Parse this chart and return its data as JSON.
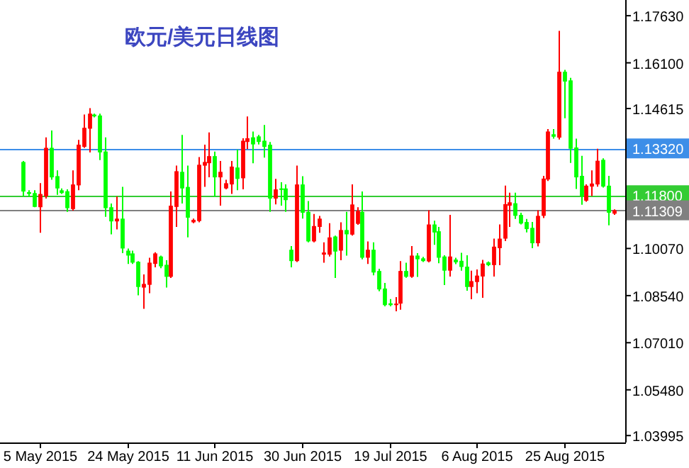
{
  "chart_data": {
    "type": "candlestick",
    "title": "欧元/美元日线图",
    "categories": [
      null,
      null,
      null,
      "5 May 2015",
      null,
      null,
      null,
      null,
      null,
      null,
      null,
      null,
      null,
      null,
      null,
      null,
      null,
      null,
      null,
      "24 May 2015",
      null,
      null,
      null,
      null,
      null,
      null,
      null,
      null,
      null,
      null,
      null,
      null,
      null,
      null,
      null,
      "11 Jun 2015",
      null,
      null,
      null,
      null,
      null,
      null,
      null,
      null,
      null,
      null,
      null,
      null,
      null,
      null,
      null,
      "30 Jun 2015",
      null,
      null,
      null,
      null,
      null,
      null,
      null,
      null,
      null,
      null,
      null,
      null,
      null,
      null,
      null,
      "19 Jul 2015",
      null,
      null,
      null,
      null,
      null,
      null,
      null,
      null,
      null,
      null,
      null,
      null,
      null,
      null,
      null,
      "6 Aug 2015",
      null,
      null,
      null,
      null,
      null,
      null,
      null,
      null,
      null,
      null,
      null,
      null,
      null,
      null,
      null,
      "25 Aug 2015",
      null,
      null,
      null,
      null,
      null,
      null,
      null,
      null,
      null
    ],
    "ohlc": [
      [
        1.1288,
        1.1291,
        1.1176,
        1.1192
      ],
      [
        1.119,
        1.1196,
        1.1175,
        1.1184
      ],
      [
        1.1187,
        1.1196,
        1.1141,
        1.1142
      ],
      [
        1.1141,
        1.1219,
        1.1058,
        1.1184
      ],
      [
        1.1176,
        1.1368,
        1.1169,
        1.1334
      ],
      [
        1.1334,
        1.139,
        1.123,
        1.1238
      ],
      [
        1.1242,
        1.1261,
        1.1181,
        1.1202
      ],
      [
        1.1196,
        1.1202,
        1.1184,
        1.1187
      ],
      [
        1.1193,
        1.1199,
        1.1126,
        1.1138
      ],
      [
        1.1135,
        1.1261,
        1.113,
        1.1215
      ],
      [
        1.1212,
        1.136,
        1.1196,
        1.1344
      ],
      [
        1.1337,
        1.1442,
        1.1334,
        1.1399
      ],
      [
        1.1396,
        1.1463,
        1.1319,
        1.1445
      ],
      [
        1.1442,
        1.1445,
        1.1433,
        1.1436
      ],
      [
        1.1439,
        1.1445,
        1.1294,
        1.1319
      ],
      [
        1.1322,
        1.1368,
        1.111,
        1.1138
      ],
      [
        1.1141,
        1.1153,
        1.1053,
        1.1095
      ],
      [
        1.1095,
        1.1176,
        1.1069,
        1.1104
      ],
      [
        1.1104,
        1.1207,
        1.0992,
        1.1007
      ],
      [
        1.1,
        1.1007,
        1.0957,
        1.0984
      ],
      [
        1.0991,
        1.1,
        1.0957,
        1.0961
      ],
      [
        1.0964,
        1.0966,
        1.0855,
        1.0882
      ],
      [
        1.088,
        1.0923,
        1.0811,
        1.0892
      ],
      [
        1.0889,
        1.0977,
        1.0862,
        1.0961
      ],
      [
        1.0957,
        1.0995,
        1.0946,
        1.0991
      ],
      [
        1.0981,
        1.0984,
        1.0943,
        1.0949
      ],
      [
        1.0954,
        1.0969,
        1.088,
        1.0915
      ],
      [
        1.0915,
        1.1192,
        1.0911,
        1.1146
      ],
      [
        1.1142,
        1.1276,
        1.1077,
        1.1258
      ],
      [
        1.1256,
        1.1376,
        1.1153,
        1.1202
      ],
      [
        1.1207,
        1.1276,
        1.1043,
        1.1107
      ],
      [
        1.1092,
        1.1104,
        1.1089,
        1.11
      ],
      [
        1.1096,
        1.1304,
        1.1092,
        1.1279
      ],
      [
        1.1276,
        1.1344,
        1.1207,
        1.1288
      ],
      [
        1.1284,
        1.1384,
        1.1238,
        1.1307
      ],
      [
        1.1307,
        1.1322,
        1.1176,
        1.1238
      ],
      [
        1.1238,
        1.1291,
        1.1146,
        1.1256
      ],
      [
        1.1202,
        1.123,
        1.1199,
        1.1219
      ],
      [
        1.1215,
        1.1291,
        1.1184,
        1.1273
      ],
      [
        1.127,
        1.1328,
        1.1196,
        1.1233
      ],
      [
        1.1235,
        1.1365,
        1.1199,
        1.1357
      ],
      [
        1.1353,
        1.1436,
        1.133,
        1.1365
      ],
      [
        1.1368,
        1.1387,
        1.1284,
        1.1345
      ],
      [
        1.1371,
        1.1376,
        1.1345,
        1.1353
      ],
      [
        1.1357,
        1.1408,
        1.1302,
        1.1337
      ],
      [
        1.1344,
        1.1353,
        1.1126,
        1.1169
      ],
      [
        1.1169,
        1.1233,
        1.115,
        1.1199
      ],
      [
        1.1202,
        1.1222,
        1.1146,
        1.1199
      ],
      [
        1.1202,
        1.1215,
        1.1126,
        1.1164
      ],
      [
        1.1003,
        1.1015,
        1.0946,
        1.0966
      ],
      [
        1.0966,
        1.1276,
        1.0963,
        1.1215
      ],
      [
        1.1215,
        1.1242,
        1.1104,
        1.1123
      ],
      [
        1.1126,
        1.1161,
        1.1027,
        1.103
      ],
      [
        1.103,
        1.1119,
        1.1027,
        1.108
      ],
      [
        1.1077,
        1.1113,
        1.1058,
        1.1104
      ],
      [
        1.0987,
        1.1027,
        1.0961,
        1.0994
      ],
      [
        1.0987,
        1.1089,
        1.0981,
        1.1043
      ],
      [
        1.1046,
        1.1049,
        1.0911,
        1.0997
      ],
      [
        1.1,
        1.1092,
        1.0969,
        1.1067
      ],
      [
        1.1067,
        1.1126,
        1.0984,
        1.1053
      ],
      [
        1.1052,
        1.1215,
        1.1049,
        1.115
      ],
      [
        1.1087,
        1.1141,
        1.1084,
        1.1129
      ],
      [
        1.1126,
        1.1192,
        1.0972,
        1.0977
      ],
      [
        1.0977,
        1.103,
        1.0957,
        1.1003
      ],
      [
        1.1003,
        1.1027,
        1.092,
        1.0929
      ],
      [
        1.0934,
        1.0941,
        1.0868,
        1.0874
      ],
      [
        1.0877,
        1.0895,
        1.0819,
        1.0823
      ],
      [
        1.0829,
        1.0843,
        1.0819,
        1.0823
      ],
      [
        1.0823,
        1.0849,
        1.0803,
        1.0828
      ],
      [
        1.0828,
        1.0966,
        1.0808,
        1.0934
      ],
      [
        1.0934,
        1.0961,
        1.0912,
        1.0915
      ],
      [
        1.0915,
        1.1015,
        1.0912,
        1.0984
      ],
      [
        1.0984,
        1.0992,
        1.0915,
        1.0972
      ],
      [
        1.0975,
        1.098,
        1.0963,
        1.0966
      ],
      [
        1.0965,
        1.1131,
        1.0962,
        1.1085
      ],
      [
        1.1085,
        1.1097,
        1.1019,
        1.1059
      ],
      [
        1.1063,
        1.1077,
        1.0959,
        1.0977
      ],
      [
        1.0981,
        1.0985,
        1.0888,
        1.0935
      ],
      [
        1.0935,
        1.1116,
        1.0916,
        1.0981
      ],
      [
        1.0971,
        1.0977,
        1.0956,
        1.0962
      ],
      [
        1.0967,
        1.0993,
        1.0935,
        1.0947
      ],
      [
        1.0948,
        1.0985,
        1.087,
        1.0882
      ],
      [
        1.0882,
        1.0935,
        1.0842,
        1.0901
      ],
      [
        1.0898,
        1.0939,
        1.0862,
        1.0919
      ],
      [
        1.0916,
        1.097,
        1.0847,
        1.0958
      ],
      [
        1.0962,
        1.0965,
        1.095,
        1.0953
      ],
      [
        1.0953,
        1.1039,
        1.0916,
        1.1013
      ],
      [
        1.1008,
        1.1085,
        1.0953,
        1.1039
      ],
      [
        1.1039,
        1.1211,
        1.1031,
        1.1151
      ],
      [
        1.1146,
        1.1188,
        1.1077,
        1.1157
      ],
      [
        1.1154,
        1.1188,
        1.1103,
        1.1113
      ],
      [
        1.1116,
        1.1123,
        1.1085,
        1.1088
      ],
      [
        1.1093,
        1.1103,
        1.1059,
        1.107
      ],
      [
        1.1074,
        1.1093,
        1.1008,
        1.1024
      ],
      [
        1.1024,
        1.1131,
        1.1014,
        1.1113
      ],
      [
        1.1113,
        1.1243,
        1.1106,
        1.1234
      ],
      [
        1.1231,
        1.1395,
        1.1226,
        1.1387
      ],
      [
        1.1378,
        1.1395,
        1.1364,
        1.137
      ],
      [
        1.1367,
        1.1714,
        1.1361,
        1.1581
      ],
      [
        1.1581,
        1.1587,
        1.143,
        1.1549
      ],
      [
        1.1553,
        1.1561,
        1.1285,
        1.1331
      ],
      [
        1.1335,
        1.1364,
        1.12,
        1.1238
      ],
      [
        1.1243,
        1.1308,
        1.1149,
        1.1177
      ],
      [
        1.1162,
        1.1215,
        1.1159,
        1.1211
      ],
      [
        1.1208,
        1.1261,
        1.1177,
        1.1218
      ],
      [
        1.1215,
        1.1331,
        1.1208,
        1.1292
      ],
      [
        1.1295,
        1.13,
        1.1205,
        1.1208
      ],
      [
        1.1211,
        1.1243,
        1.1082,
        1.1123
      ],
      [
        1.112,
        1.1134,
        1.1116,
        1.1131
      ]
    ],
    "colors": [
      "#00ff00",
      "#00ff00",
      "#00ff00",
      "#ff0000",
      "#ff0000",
      "#00ff00",
      "#00ff00",
      "#00ff00",
      "#00ff00",
      "#ff0000",
      "#ff0000",
      "#ff0000",
      "#ff0000",
      "#00ff00",
      "#00ff00",
      "#00ff00",
      "#00ff00",
      "#ff0000",
      "#00ff00",
      "#00ff00",
      "#00ff00",
      "#00ff00",
      "#ff0000",
      "#ff0000",
      "#ff0000",
      "#00ff00",
      "#00ff00",
      "#ff0000",
      "#ff0000",
      "#00ff00",
      "#00ff00",
      "#ff0000",
      "#ff0000",
      "#ff0000",
      "#ff0000",
      "#00ff00",
      "#ff0000",
      "#ff0000",
      "#ff0000",
      "#00ff00",
      "#ff0000",
      "#ff0000",
      "#00ff00",
      "#00ff00",
      "#00ff00",
      "#00ff00",
      "#ff0000",
      "#00ff00",
      "#00ff00",
      "#00ff00",
      "#ff0000",
      "#00ff00",
      "#00ff00",
      "#ff0000",
      "#ff0000",
      "#ff0000",
      "#ff0000",
      "#00ff00",
      "#ff0000",
      "#00ff00",
      "#ff0000",
      "#ff0000",
      "#00ff00",
      "#ff0000",
      "#00ff00",
      "#00ff00",
      "#00ff00",
      "#00ff00",
      "#ff0000",
      "#ff0000",
      "#00ff00",
      "#ff0000",
      "#00ff00",
      "#00ff00",
      "#ff0000",
      "#00ff00",
      "#00ff00",
      "#00ff00",
      "#ff0000",
      "#00ff00",
      "#00ff00",
      "#00ff00",
      "#ff0000",
      "#ff0000",
      "#ff0000",
      "#00ff00",
      "#ff0000",
      "#ff0000",
      "#ff0000",
      "#ff0000",
      "#00ff00",
      "#00ff00",
      "#00ff00",
      "#00ff00",
      "#ff0000",
      "#ff0000",
      "#ff0000",
      "#00ff00",
      "#ff0000",
      "#00ff00",
      "#00ff00",
      "#00ff00",
      "#00ff00",
      "#ff0000",
      "#ff0000",
      "#ff0000",
      "#00ff00",
      "#00ff00",
      "#ff0000"
    ],
    "ylim": [
      1.0377,
      1.1814
    ],
    "yticks": [
      {
        "value": 1.1763,
        "label": "1.17630"
      },
      {
        "value": 1.161,
        "label": "1.16100"
      },
      {
        "value": 1.14615,
        "label": "1.14615"
      },
      {
        "value": 1.1007,
        "label": "1.10070"
      },
      {
        "value": 1.0854,
        "label": "1.08540"
      },
      {
        "value": 1.0701,
        "label": "1.07010"
      },
      {
        "value": 1.0548,
        "label": "1.05480"
      },
      {
        "value": 1.03995,
        "label": "1.03995"
      }
    ],
    "ref_lines": [
      {
        "axis": "y",
        "value": 1.1332,
        "label": "1.13320",
        "color": "#3d8ee8"
      },
      {
        "axis": "y",
        "value": 1.118,
        "label": "1.11800",
        "color": "#33cc33"
      },
      {
        "axis": "y",
        "value": 1.11309,
        "label": "1.11309",
        "color": "#808080"
      }
    ],
    "grid": false
  }
}
